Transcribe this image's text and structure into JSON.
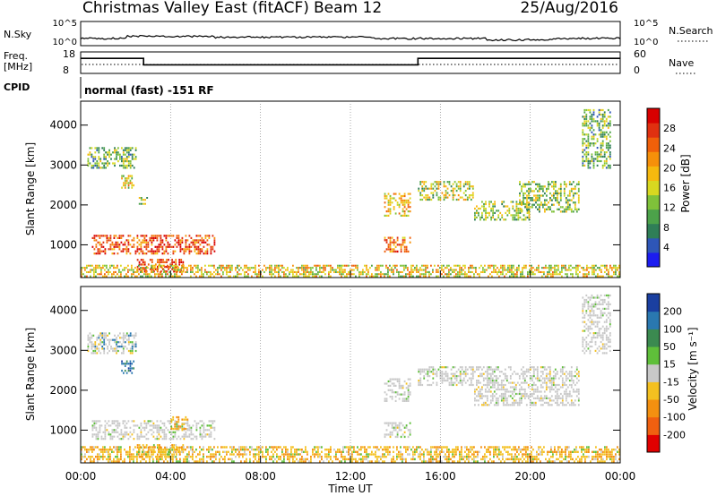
{
  "header": {
    "station": "Christmas Valley East (fitACF)",
    "beam": "Beam 12",
    "date": "25/Aug/2016"
  },
  "top_panels": {
    "nsky_label": "N.Sky",
    "nsky_ticks": [
      "10^5",
      "10^0"
    ],
    "nsearch_label": "N.Search",
    "nsearch_ticks": [
      "10^5",
      "10^0"
    ],
    "freq_label": "Freq.",
    "freq_unit": "[MHz]",
    "freq_ticks": [
      "18",
      "8"
    ],
    "nave_label": "Nave",
    "nave_ticks": [
      "60",
      "0"
    ],
    "cpid_label": "CPID",
    "cpid_text": "normal (fast) -151 RF"
  },
  "x_axis": {
    "title": "Time UT",
    "ticks": [
      "00:00",
      "04:00",
      "08:00",
      "12:00",
      "16:00",
      "20:00",
      "00:00"
    ]
  },
  "chart_data": [
    {
      "type": "heatmap",
      "name": "power",
      "ylabel": "Slant Range [km]",
      "yticks": [
        "1000",
        "2000",
        "3000",
        "4000"
      ],
      "ylim": [
        180,
        4600
      ],
      "xlim": [
        0,
        24
      ],
      "colorbar": {
        "label": "Power [dB]",
        "ticks": [
          "4",
          "8",
          "12",
          "16",
          "20",
          "24",
          "28"
        ],
        "colors": [
          "#1c1cf0",
          "#2e56b8",
          "#2f7e57",
          "#4ca24a",
          "#7fc23a",
          "#d8d820",
          "#f6b90e",
          "#f6900a",
          "#f0600a",
          "#e03010",
          "#d80000"
        ]
      },
      "regions": [
        {
          "t0": 0.5,
          "t1": 6.0,
          "r0": 750,
          "r1": 1250,
          "level": 0.85
        },
        {
          "t0": 2.5,
          "t1": 4.6,
          "r0": 300,
          "r1": 650,
          "level": 0.9
        },
        {
          "t0": 0.3,
          "t1": 2.5,
          "r0": 2900,
          "r1": 3450,
          "level": 0.35
        },
        {
          "t0": 1.8,
          "t1": 2.4,
          "r0": 2400,
          "r1": 2750,
          "level": 0.55
        },
        {
          "t0": 2.5,
          "t1": 3.0,
          "r0": 2000,
          "r1": 2200,
          "level": 0.4
        },
        {
          "t0": 13.5,
          "t1": 14.7,
          "r0": 1700,
          "r1": 2300,
          "level": 0.6
        },
        {
          "t0": 13.5,
          "t1": 14.7,
          "r0": 800,
          "r1": 1200,
          "level": 0.75
        },
        {
          "t0": 15.0,
          "t1": 17.5,
          "r0": 2100,
          "r1": 2600,
          "level": 0.45
        },
        {
          "t0": 17.5,
          "t1": 20.0,
          "r0": 1600,
          "r1": 2100,
          "level": 0.4
        },
        {
          "t0": 19.5,
          "t1": 22.2,
          "r0": 1800,
          "r1": 2600,
          "level": 0.4
        },
        {
          "t0": 22.3,
          "t1": 23.6,
          "r0": 2900,
          "r1": 4400,
          "level": 0.35
        },
        {
          "t0": 0.0,
          "t1": 24.0,
          "r0": 180,
          "r1": 500,
          "level": 0.55
        }
      ]
    },
    {
      "type": "heatmap",
      "name": "velocity",
      "ylabel": "Slant Range [km]",
      "yticks": [
        "1000",
        "2000",
        "3000",
        "4000"
      ],
      "ylim": [
        180,
        4600
      ],
      "xlim": [
        0,
        24
      ],
      "colorbar": {
        "label": "Velocity [m s⁻¹]",
        "ticks": [
          "200",
          "100",
          "50",
          "15",
          "-15",
          "-50",
          "-100",
          "-200"
        ],
        "colors": [
          "#1a3fa0",
          "#2a78b0",
          "#3b8a50",
          "#5fbf3a",
          "#c8c8c8",
          "#f4c020",
          "#f49010",
          "#f06010",
          "#e00000"
        ]
      },
      "regions": [
        {
          "t0": 0.5,
          "t1": 6.0,
          "r0": 750,
          "r1": 1250,
          "kind": "ground"
        },
        {
          "t0": 4.0,
          "t1": 4.8,
          "r0": 1000,
          "r1": 1350,
          "kind": "neg"
        },
        {
          "t0": 2.5,
          "t1": 4.6,
          "r0": 300,
          "r1": 650,
          "kind": "neg"
        },
        {
          "t0": 0.3,
          "t1": 2.5,
          "r0": 2900,
          "r1": 3450,
          "kind": "mixed"
        },
        {
          "t0": 1.8,
          "t1": 2.4,
          "r0": 2400,
          "r1": 2750,
          "kind": "pos"
        },
        {
          "t0": 13.5,
          "t1": 14.7,
          "r0": 1700,
          "r1": 2300,
          "kind": "ground"
        },
        {
          "t0": 13.5,
          "t1": 14.7,
          "r0": 800,
          "r1": 1200,
          "kind": "ground"
        },
        {
          "t0": 15.0,
          "t1": 17.5,
          "r0": 2100,
          "r1": 2600,
          "kind": "ground"
        },
        {
          "t0": 17.5,
          "t1": 22.2,
          "r0": 1600,
          "r1": 2600,
          "kind": "ground"
        },
        {
          "t0": 22.3,
          "t1": 23.6,
          "r0": 2900,
          "r1": 4400,
          "kind": "ground"
        },
        {
          "t0": 0.0,
          "t1": 24.0,
          "r0": 180,
          "r1": 600,
          "kind": "neg"
        }
      ]
    }
  ],
  "freq_series": {
    "unit": "MHz",
    "segments": [
      {
        "t0": 0.0,
        "t1": 2.8,
        "value": 15
      },
      {
        "t0": 2.8,
        "t1": 15.0,
        "value": 12
      },
      {
        "t0": 15.0,
        "t1": 24.0,
        "value": 15
      }
    ]
  }
}
